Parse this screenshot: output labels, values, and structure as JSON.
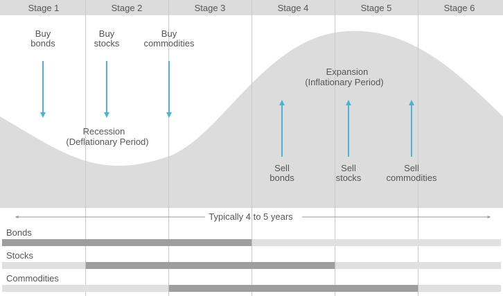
{
  "stages": [
    "Stage 1",
    "Stage 2",
    "Stage 3",
    "Stage 4",
    "Stage 5",
    "Stage 6"
  ],
  "buy_labels": [
    [
      "Buy",
      "bonds"
    ],
    [
      "Buy",
      "stocks"
    ],
    [
      "Buy",
      "commodities"
    ]
  ],
  "sell_labels": [
    [
      "Sell",
      "bonds"
    ],
    [
      "Sell",
      "stocks"
    ],
    [
      "Sell",
      "commodities"
    ]
  ],
  "phases": {
    "recession": [
      "Recession",
      "(Deflationary Period)"
    ],
    "expansion": [
      "Expansion",
      "(Inflationary Period)"
    ]
  },
  "duration_label": "Typically 4 to 5 years",
  "assets": [
    {
      "name": "Bonds",
      "active_stages": [
        1,
        3
      ]
    },
    {
      "name": "Stocks",
      "active_stages": [
        2,
        4
      ]
    },
    {
      "name": "Commodities",
      "active_stages": [
        3,
        5
      ]
    }
  ],
  "colors": {
    "header_bg": "#dcdcdc",
    "wave_fill": "#dcdcdc",
    "arrow": "#4db3d6",
    "bar_active": "#9e9e9e",
    "bar_inactive": "#e0e0e0",
    "divider": "#c8c8c8",
    "text": "#555555"
  }
}
